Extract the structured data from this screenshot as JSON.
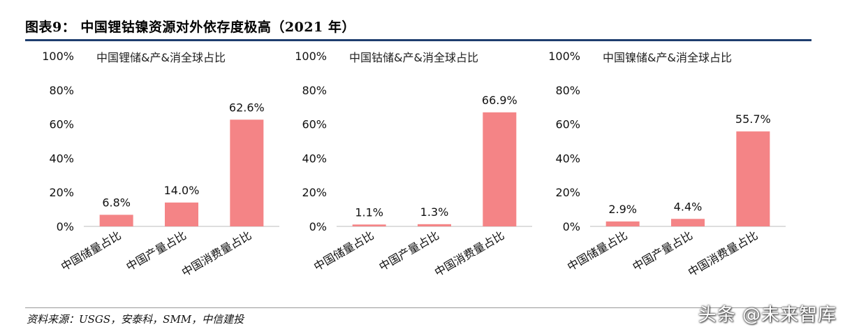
{
  "figure_title": "图表9：  中国锂钴镍资源对外依存度极高（2021 年）",
  "source_note": "资料来源：USGS，安泰科，SMM，中信建投",
  "watermark": "头条 @未来智库",
  "colors": {
    "bar": "#f48486",
    "rule": "#1f3e6e",
    "axis": "#c9c9c9"
  },
  "chart_data": [
    {
      "type": "bar",
      "title": "中国锂储&产&消全球占比",
      "categories": [
        "中国储量占比",
        "中国产量占比",
        "中国消费量占比"
      ],
      "values": [
        6.8,
        14.0,
        62.6
      ],
      "value_labels": [
        "6.8%",
        "14.0%",
        "62.6%"
      ],
      "ylim": [
        0,
        100
      ],
      "yticks": [
        "0%",
        "20%",
        "40%",
        "60%",
        "80%",
        "100%"
      ],
      "xlabel": "",
      "ylabel": ""
    },
    {
      "type": "bar",
      "title": "中国钴储&产&消全球占比",
      "categories": [
        "中国储量占比",
        "中国产量占比",
        "中国消费量占比"
      ],
      "values": [
        1.1,
        1.3,
        66.9
      ],
      "value_labels": [
        "1.1%",
        "1.3%",
        "66.9%"
      ],
      "ylim": [
        0,
        100
      ],
      "yticks": [
        "0%",
        "20%",
        "40%",
        "60%",
        "80%",
        "100%"
      ],
      "xlabel": "",
      "ylabel": ""
    },
    {
      "type": "bar",
      "title": "中国镍储&产&消全球占比",
      "categories": [
        "中国储量占比",
        "中国产量占比",
        "中国消费量占比"
      ],
      "values": [
        2.9,
        4.4,
        55.7
      ],
      "value_labels": [
        "2.9%",
        "4.4%",
        "55.7%"
      ],
      "ylim": [
        0,
        100
      ],
      "yticks": [
        "0%",
        "20%",
        "40%",
        "60%",
        "80%",
        "100%"
      ],
      "xlabel": "",
      "ylabel": ""
    }
  ]
}
